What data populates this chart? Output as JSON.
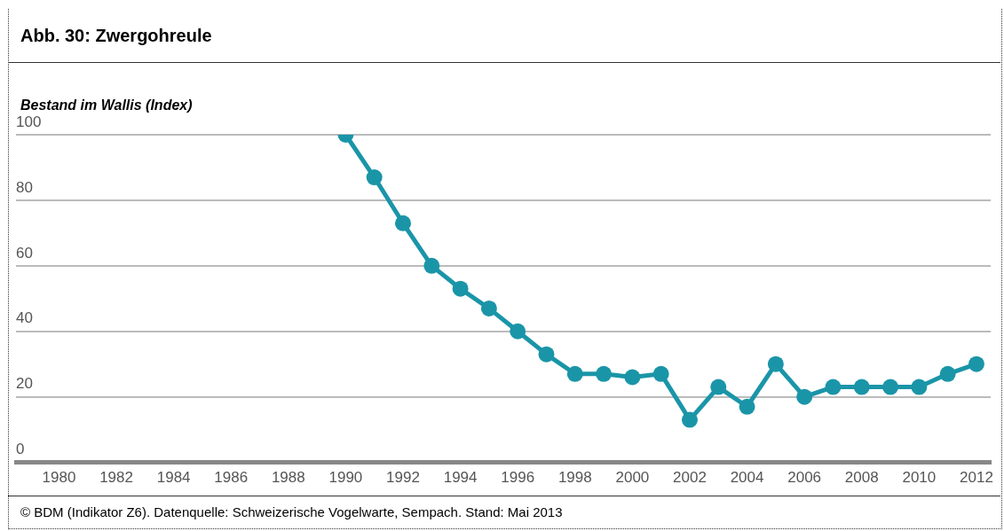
{
  "chart_data": {
    "type": "line",
    "title": "Abb. 30: Zwergohreule",
    "ylabel": "Bestand im Wallis (Index)",
    "x": [
      1990,
      1991,
      1992,
      1993,
      1994,
      1995,
      1996,
      1997,
      1998,
      1999,
      2000,
      2001,
      2002,
      2003,
      2004,
      2005,
      2006,
      2007,
      2008,
      2009,
      2010,
      2011,
      2012
    ],
    "series": [
      {
        "color": "#1a95a8",
        "values": [
          100,
          87,
          73,
          60,
          53,
          47,
          40,
          33,
          27,
          27,
          26,
          27,
          13,
          23,
          17,
          30,
          20,
          23,
          23,
          23,
          23,
          27,
          30
        ]
      }
    ],
    "xlim": [
      1978.5,
      2012.5
    ],
    "xticks": [
      1980,
      1982,
      1984,
      1986,
      1988,
      1990,
      1992,
      1994,
      1996,
      1998,
      2000,
      2002,
      2004,
      2006,
      2008,
      2010,
      2012
    ],
    "ylim": [
      0,
      100
    ],
    "yticks": [
      0,
      20,
      40,
      60,
      80,
      100
    ],
    "grid": "y",
    "legend": false,
    "marker": "circle",
    "line_style": "solid",
    "annotations": [
      "©  BDM (Indikator Z6). Datenquelle: Schweizerische Vogelwarte, Sempach. Stand: Mai 2013"
    ]
  }
}
